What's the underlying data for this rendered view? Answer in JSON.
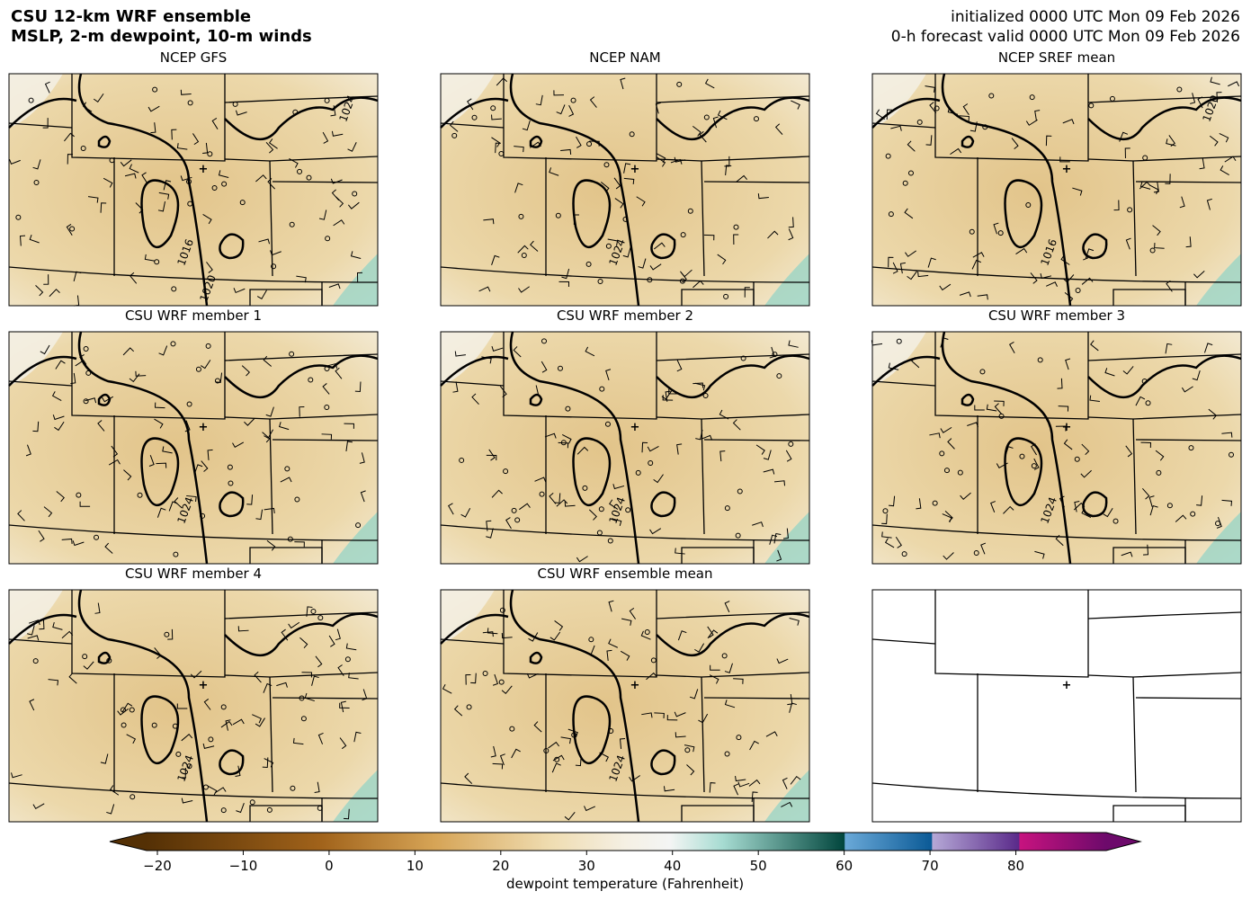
{
  "header": {
    "title_lines": [
      "CSU 12-km WRF ensemble",
      "MSLP, 2-m dewpoint, 10-m winds"
    ],
    "valid_lines": [
      "initialized 0000 UTC Mon 09 Feb 2026",
      "0-h forecast valid 0000 UTC Mon 09 Feb 2026"
    ]
  },
  "panels": [
    {
      "title": "NCEP GFS",
      "contour_labels": [
        "1016",
        "1024",
        "1020"
      ]
    },
    {
      "title": "NCEP NAM",
      "contour_labels": [
        "1024"
      ]
    },
    {
      "title": "NCEP SREF mean",
      "contour_labels": [
        "1016",
        "1020"
      ]
    },
    {
      "title": "CSU WRF member 1",
      "contour_labels": [
        "1024"
      ]
    },
    {
      "title": "CSU WRF member 2",
      "contour_labels": [
        "1024"
      ]
    },
    {
      "title": "CSU WRF member 3",
      "contour_labels": [
        "1024"
      ]
    },
    {
      "title": "CSU WRF member 4",
      "contour_labels": [
        "1024"
      ]
    },
    {
      "title": "CSU WRF ensemble mean",
      "contour_labels": [
        "1024"
      ]
    }
  ],
  "colorbar": {
    "label": "dewpoint temperature (Fahrenheit)",
    "lim": [
      -20,
      90
    ],
    "ticks": [
      {
        "value": -20,
        "label": "−20"
      },
      {
        "value": -10,
        "label": "−10"
      },
      0,
      10,
      20,
      30,
      40,
      50,
      60,
      70,
      80
    ]
  }
}
